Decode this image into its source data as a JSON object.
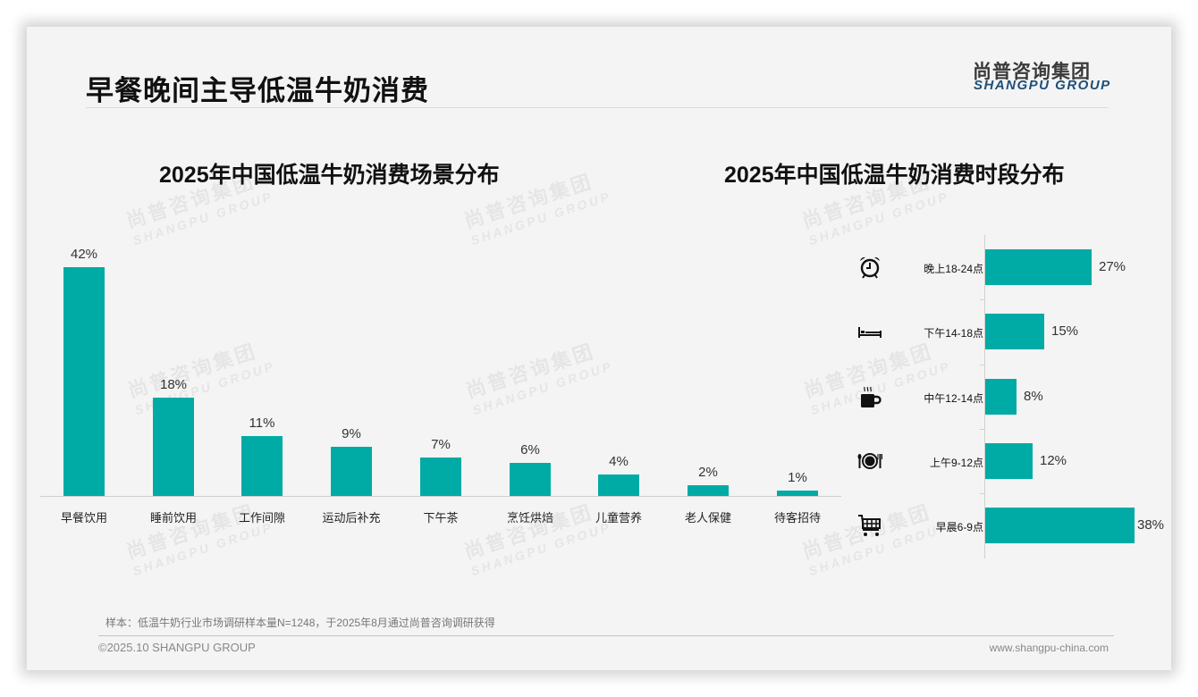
{
  "header": {
    "title": "早餐晚间主导低温牛奶消费",
    "logo_cn": "尚普咨询集团",
    "logo_en": "SHANGPU GROUP"
  },
  "watermark": {
    "cn": "尚普咨询集团",
    "en": "SHANGPU GROUP"
  },
  "colors": {
    "bar": "#00aba5",
    "background": "#f4f4f4",
    "logo_en": "#1d4f7a"
  },
  "chart_data": [
    {
      "type": "bar",
      "title": "2025年中国低温牛奶消费场景分布",
      "categories": [
        "早餐饮用",
        "睡前饮用",
        "工作间隙",
        "运动后补充",
        "下午茶",
        "烹饪烘焙",
        "儿童营养",
        "老人保健",
        "待客招待"
      ],
      "values": [
        42,
        18,
        11,
        9,
        7,
        6,
        4,
        2,
        1
      ],
      "value_labels": [
        "42%",
        "18%",
        "11%",
        "9%",
        "7%",
        "6%",
        "4%",
        "2%",
        "1%"
      ],
      "unit": "%",
      "xlabel": "",
      "ylabel": "",
      "grid": false,
      "legend": "none"
    },
    {
      "type": "bar",
      "orientation": "horizontal",
      "title": "2025年中国低温牛奶消费时段分布",
      "categories": [
        "晚上18-24点",
        "下午14-18点",
        "中午12-14点",
        "上午9-12点",
        "早晨6-9点"
      ],
      "values": [
        27,
        15,
        8,
        12,
        38
      ],
      "value_labels": [
        "27%",
        "15%",
        "8%",
        "12%",
        "38%"
      ],
      "icons": [
        "alarm-clock-icon",
        "bed-icon",
        "coffee-cup-icon",
        "plate-cutlery-icon",
        "shopping-cart-icon"
      ],
      "unit": "%",
      "xlabel": "",
      "ylabel": "",
      "grid": false,
      "legend": "none"
    }
  ],
  "footer": {
    "note": "样本：低温牛奶行业市场调研样本量N=1248，于2025年8月通过尚普咨询调研获得",
    "copyright": "©2025.10 SHANGPU GROUP",
    "website": "www.shangpu-china.com"
  }
}
